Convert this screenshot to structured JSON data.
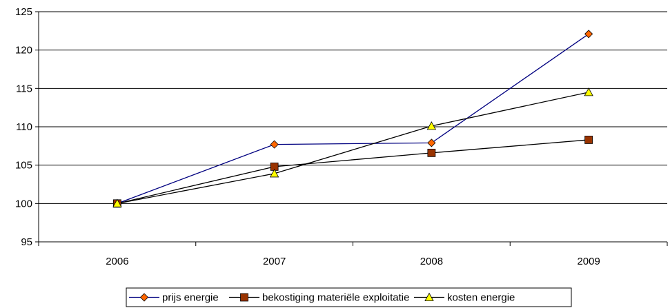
{
  "chart_data": {
    "type": "line",
    "title": "",
    "xlabel": "",
    "ylabel": "",
    "categories": [
      "2006",
      "2007",
      "2008",
      "2009"
    ],
    "ylim": [
      95,
      125
    ],
    "yticks": [
      95,
      100,
      105,
      110,
      115,
      120,
      125
    ],
    "grid": "horizontal",
    "legend_position": "bottom",
    "series": [
      {
        "name": "prijs energie",
        "values": [
          100,
          107.7,
          107.9,
          122.1
        ],
        "line_color": "#000080",
        "marker": "diamond",
        "marker_color": "#FF6600"
      },
      {
        "name": "bekostiging materiële exploitatie",
        "values": [
          100,
          104.8,
          106.6,
          108.3
        ],
        "line_color": "#000000",
        "marker": "square",
        "marker_color": "#993300"
      },
      {
        "name": "kosten energie",
        "values": [
          100,
          103.9,
          110.1,
          114.5
        ],
        "line_color": "#000000",
        "marker": "triangle",
        "marker_color": "#FFFF00"
      }
    ]
  }
}
